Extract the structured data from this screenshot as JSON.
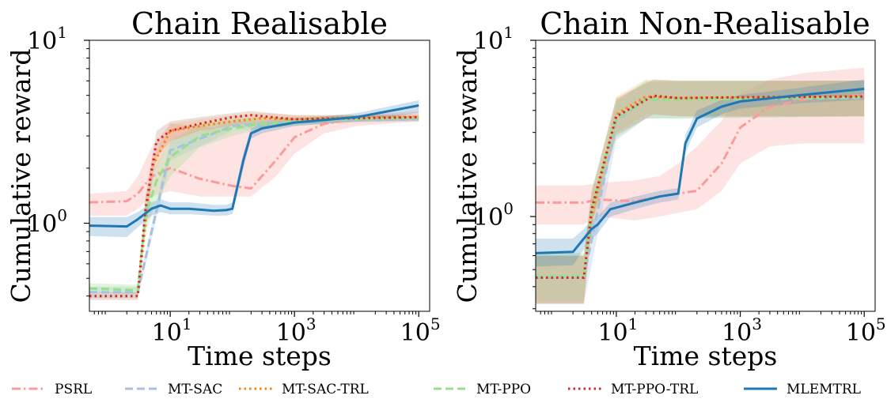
{
  "chart_data": [
    {
      "type": "line",
      "title": "Chain Realisable",
      "xlabel": "Time steps",
      "ylabel": "Cumulative reward",
      "xscale": "log",
      "yscale": "log",
      "xlim": [
        0.5,
        150000
      ],
      "ylim": [
        0.33,
        10
      ],
      "xticks": [
        {
          "base": "10",
          "exp": "1"
        },
        {
          "base": "10",
          "exp": "3"
        },
        {
          "base": "10",
          "exp": "5"
        }
      ],
      "yticks": [
        {
          "base": "10",
          "exp": "0"
        },
        {
          "base": "10",
          "exp": "1"
        }
      ],
      "grid": false,
      "series": [
        {
          "name": "PSRL",
          "x": [
            0.5,
            2,
            3,
            5,
            10,
            30,
            100,
            200,
            500,
            1000,
            3000,
            10000,
            100000
          ],
          "y": [
            1.3,
            1.32,
            1.45,
            1.8,
            2.0,
            1.75,
            1.6,
            1.55,
            2.2,
            2.95,
            3.5,
            3.7,
            3.8
          ],
          "lower": [
            1.1,
            1.1,
            1.2,
            1.4,
            1.5,
            1.4,
            1.4,
            1.4,
            1.8,
            2.4,
            3.1,
            3.4,
            3.6
          ],
          "upper": [
            1.45,
            1.5,
            1.8,
            2.6,
            3.5,
            3.4,
            3.2,
            3.5,
            3.7,
            3.8,
            3.85,
            3.9,
            4.1
          ]
        },
        {
          "name": "MT-SAC",
          "x": [
            0.5,
            3,
            10,
            100,
            1000,
            100000
          ],
          "y": [
            0.42,
            0.42,
            2.5,
            3.4,
            3.6,
            3.7
          ],
          "lower": [
            0.39,
            0.39,
            2.2,
            3.2,
            3.5,
            3.6
          ],
          "upper": [
            0.45,
            0.45,
            2.8,
            3.6,
            3.7,
            3.8
          ]
        },
        {
          "name": "MT-SAC-TRL",
          "x": [
            0.5,
            3,
            5,
            10,
            30,
            100,
            300,
            1000,
            10000,
            100000
          ],
          "y": [
            0.4,
            0.4,
            2.0,
            3.2,
            3.4,
            3.6,
            3.75,
            3.7,
            3.8,
            3.8
          ],
          "lower": [
            0.4,
            0.4,
            1.8,
            2.8,
            3.1,
            3.3,
            3.5,
            3.5,
            3.6,
            3.6
          ],
          "upper": [
            0.4,
            0.4,
            2.2,
            3.5,
            3.7,
            3.9,
            4.0,
            3.9,
            3.9,
            3.9
          ]
        },
        {
          "name": "MT-PPO",
          "x": [
            0.5,
            3,
            4,
            6,
            10,
            30,
            100,
            300,
            1000,
            10000,
            100000
          ],
          "y": [
            0.44,
            0.43,
            1.1,
            1.7,
            2.3,
            3.0,
            3.3,
            3.5,
            3.6,
            3.7,
            3.75
          ],
          "lower": [
            0.42,
            0.41,
            0.9,
            1.3,
            1.8,
            2.6,
            3.0,
            3.3,
            3.4,
            3.6,
            3.65
          ],
          "upper": [
            0.47,
            0.46,
            1.4,
            2.1,
            2.8,
            3.5,
            3.7,
            3.8,
            3.8,
            3.85,
            3.85
          ]
        },
        {
          "name": "MT-PPO-TRL",
          "x": [
            0.5,
            3,
            4,
            6,
            10,
            30,
            100,
            200,
            1000,
            10000,
            100000
          ],
          "y": [
            0.4,
            0.4,
            1.2,
            2.8,
            3.2,
            3.5,
            3.8,
            3.9,
            3.7,
            3.75,
            3.8
          ],
          "lower": [
            0.38,
            0.38,
            1.0,
            2.3,
            2.8,
            3.2,
            3.4,
            3.5,
            3.5,
            3.6,
            3.65
          ],
          "upper": [
            0.42,
            0.42,
            1.4,
            3.2,
            3.6,
            3.8,
            4.0,
            4.1,
            3.9,
            3.9,
            3.95
          ]
        },
        {
          "name": "MLEMTRL",
          "x": [
            0.5,
            2,
            3,
            5,
            7,
            10,
            20,
            50,
            80,
            100,
            150,
            200,
            300,
            1000,
            10000,
            100000
          ],
          "y": [
            0.97,
            0.96,
            1.05,
            1.2,
            1.25,
            1.2,
            1.2,
            1.17,
            1.18,
            1.2,
            2.2,
            3.1,
            3.3,
            3.55,
            3.8,
            4.4
          ],
          "lower": [
            0.85,
            0.84,
            0.95,
            1.1,
            1.15,
            1.12,
            1.12,
            1.1,
            1.1,
            1.12,
            2.0,
            2.9,
            3.1,
            3.4,
            3.6,
            4.0
          ],
          "upper": [
            1.08,
            1.08,
            1.15,
            1.3,
            1.35,
            1.3,
            1.3,
            1.26,
            1.26,
            1.3,
            2.4,
            3.3,
            3.5,
            3.7,
            4.0,
            4.7
          ]
        }
      ]
    },
    {
      "type": "line",
      "title": "Chain Non-Realisable",
      "xlabel": "Time steps",
      "ylabel": "Cumulative reward",
      "xscale": "log",
      "yscale": "log",
      "xlim": [
        0.5,
        150000
      ],
      "ylim": [
        0.29,
        10
      ],
      "xticks": [
        {
          "base": "10",
          "exp": "1"
        },
        {
          "base": "10",
          "exp": "3"
        },
        {
          "base": "10",
          "exp": "5"
        }
      ],
      "yticks": [
        {
          "base": "10",
          "exp": "0"
        },
        {
          "base": "10",
          "exp": "1"
        }
      ],
      "grid": false,
      "series": [
        {
          "name": "PSRL",
          "x": [
            0.5,
            3,
            5,
            20,
            50,
            100,
            200,
            500,
            1000,
            3000,
            10000,
            100000
          ],
          "y": [
            1.2,
            1.2,
            1.25,
            1.22,
            1.3,
            1.35,
            1.4,
            2.0,
            3.2,
            4.2,
            4.6,
            4.9
          ],
          "lower": [
            0.9,
            0.9,
            1.0,
            0.95,
            1.0,
            1.05,
            1.1,
            1.4,
            2.0,
            2.5,
            2.6,
            2.6
          ],
          "upper": [
            1.5,
            1.5,
            1.55,
            1.6,
            1.7,
            2.0,
            2.5,
            3.5,
            5.0,
            6.0,
            6.5,
            7.0
          ]
        },
        {
          "name": "MT-SAC",
          "x": [
            0.5,
            3,
            10,
            30,
            100000
          ],
          "y": [
            0.45,
            0.45,
            3.5,
            4.6,
            4.7
          ],
          "lower": [
            0.32,
            0.32,
            2.7,
            3.6,
            3.7
          ],
          "upper": [
            0.6,
            0.6,
            4.5,
            5.8,
            5.9
          ]
        },
        {
          "name": "MT-SAC-TRL",
          "x": [
            0.5,
            3,
            4,
            10,
            30,
            100,
            100000
          ],
          "y": [
            0.45,
            0.45,
            1.0,
            3.8,
            4.8,
            4.7,
            4.8
          ],
          "lower": [
            0.32,
            0.32,
            0.8,
            3.0,
            3.8,
            3.7,
            3.7
          ],
          "upper": [
            0.6,
            0.6,
            1.3,
            4.8,
            6.0,
            5.9,
            5.9
          ]
        },
        {
          "name": "MT-PPO",
          "x": [
            0.5,
            3,
            4,
            10,
            30,
            100,
            100000
          ],
          "y": [
            0.46,
            0.46,
            1.1,
            3.6,
            4.6,
            4.6,
            4.75
          ],
          "lower": [
            0.33,
            0.33,
            0.9,
            2.8,
            3.6,
            3.6,
            3.7
          ],
          "upper": [
            0.62,
            0.62,
            1.4,
            4.6,
            5.9,
            5.9,
            5.9
          ]
        },
        {
          "name": "MT-PPO-TRL",
          "x": [
            0.5,
            3,
            4,
            10,
            40,
            100,
            1000,
            100000
          ],
          "y": [
            0.45,
            0.45,
            1.1,
            3.7,
            4.85,
            4.7,
            4.75,
            4.8
          ],
          "lower": [
            0.32,
            0.32,
            0.9,
            2.9,
            3.8,
            3.7,
            3.7,
            3.7
          ],
          "upper": [
            0.6,
            0.6,
            1.4,
            4.7,
            6.0,
            5.9,
            5.9,
            5.9
          ]
        },
        {
          "name": "MLEMTRL",
          "x": [
            0.5,
            2,
            3,
            4,
            5,
            8,
            20,
            50,
            100,
            130,
            200,
            500,
            1000,
            10000,
            100000
          ],
          "y": [
            0.62,
            0.63,
            0.75,
            0.85,
            0.9,
            1.1,
            1.2,
            1.3,
            1.35,
            2.6,
            3.6,
            4.2,
            4.5,
            4.9,
            5.3
          ],
          "lower": [
            0.52,
            0.53,
            0.65,
            0.75,
            0.8,
            1.0,
            1.1,
            1.2,
            1.25,
            2.3,
            3.2,
            3.8,
            4.1,
            4.4,
            4.6
          ],
          "upper": [
            0.75,
            0.75,
            0.85,
            0.95,
            1.0,
            1.2,
            1.3,
            1.4,
            1.45,
            2.9,
            4.0,
            4.6,
            4.9,
            5.4,
            6.0
          ]
        }
      ]
    }
  ],
  "legend": {
    "placement": "bottom",
    "entries": [
      {
        "name": "PSRL",
        "color": "#fb9a99",
        "dash": "dashdot"
      },
      {
        "name": "MT-SAC",
        "color": "#a6c2e0",
        "dash": "dashed"
      },
      {
        "name": "MT-SAC-TRL",
        "color": "#ff7f0e",
        "dash": "dotted"
      },
      {
        "name": "MT-PPO",
        "color": "#98df8a",
        "dash": "dashed"
      },
      {
        "name": "MT-PPO-TRL",
        "color": "#d62728",
        "dash": "dotted"
      },
      {
        "name": "MLEMTRL",
        "color": "#1f77b4",
        "dash": "solid"
      }
    ]
  }
}
